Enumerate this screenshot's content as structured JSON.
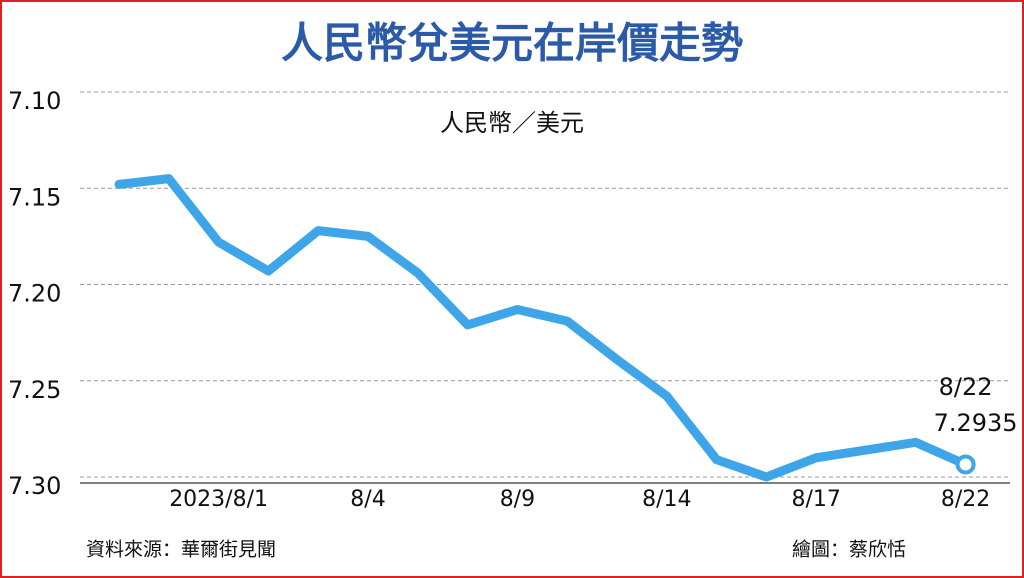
{
  "chart_data": {
    "type": "line",
    "title": "人民幣兌美元在岸價走勢",
    "y_label": "人民幣／美元",
    "source": "資料來源：華爾街見聞",
    "credit": "繪圖：蔡欣恬",
    "annotation": "8/22",
    "categories": [
      null,
      null,
      "2023/8/1",
      null,
      null,
      "8/4",
      null,
      null,
      "8/9",
      null,
      null,
      "8/14",
      null,
      null,
      "8/17",
      null,
      null,
      "8/22"
    ],
    "series": [
      {
        "name": "人民幣／美元",
        "color": "#3ea6e8",
        "values": [
          7.148,
          7.145,
          7.178,
          7.193,
          7.172,
          7.175,
          7.194,
          7.221,
          7.213,
          7.219,
          7.239,
          7.258,
          7.291,
          7.3,
          7.29,
          7.286,
          7.282,
          7.2935
        ]
      }
    ],
    "ylim": [
      7.1,
      7.3
    ],
    "y_inverted": true,
    "yticks": [
      {
        "value": 7.1,
        "label": "7.10"
      },
      7.15,
      {
        "value": 7.2,
        "label": "7.20"
      },
      7.25,
      {
        "value": 7.3,
        "label": "7.30"
      }
    ],
    "grid": true
  }
}
